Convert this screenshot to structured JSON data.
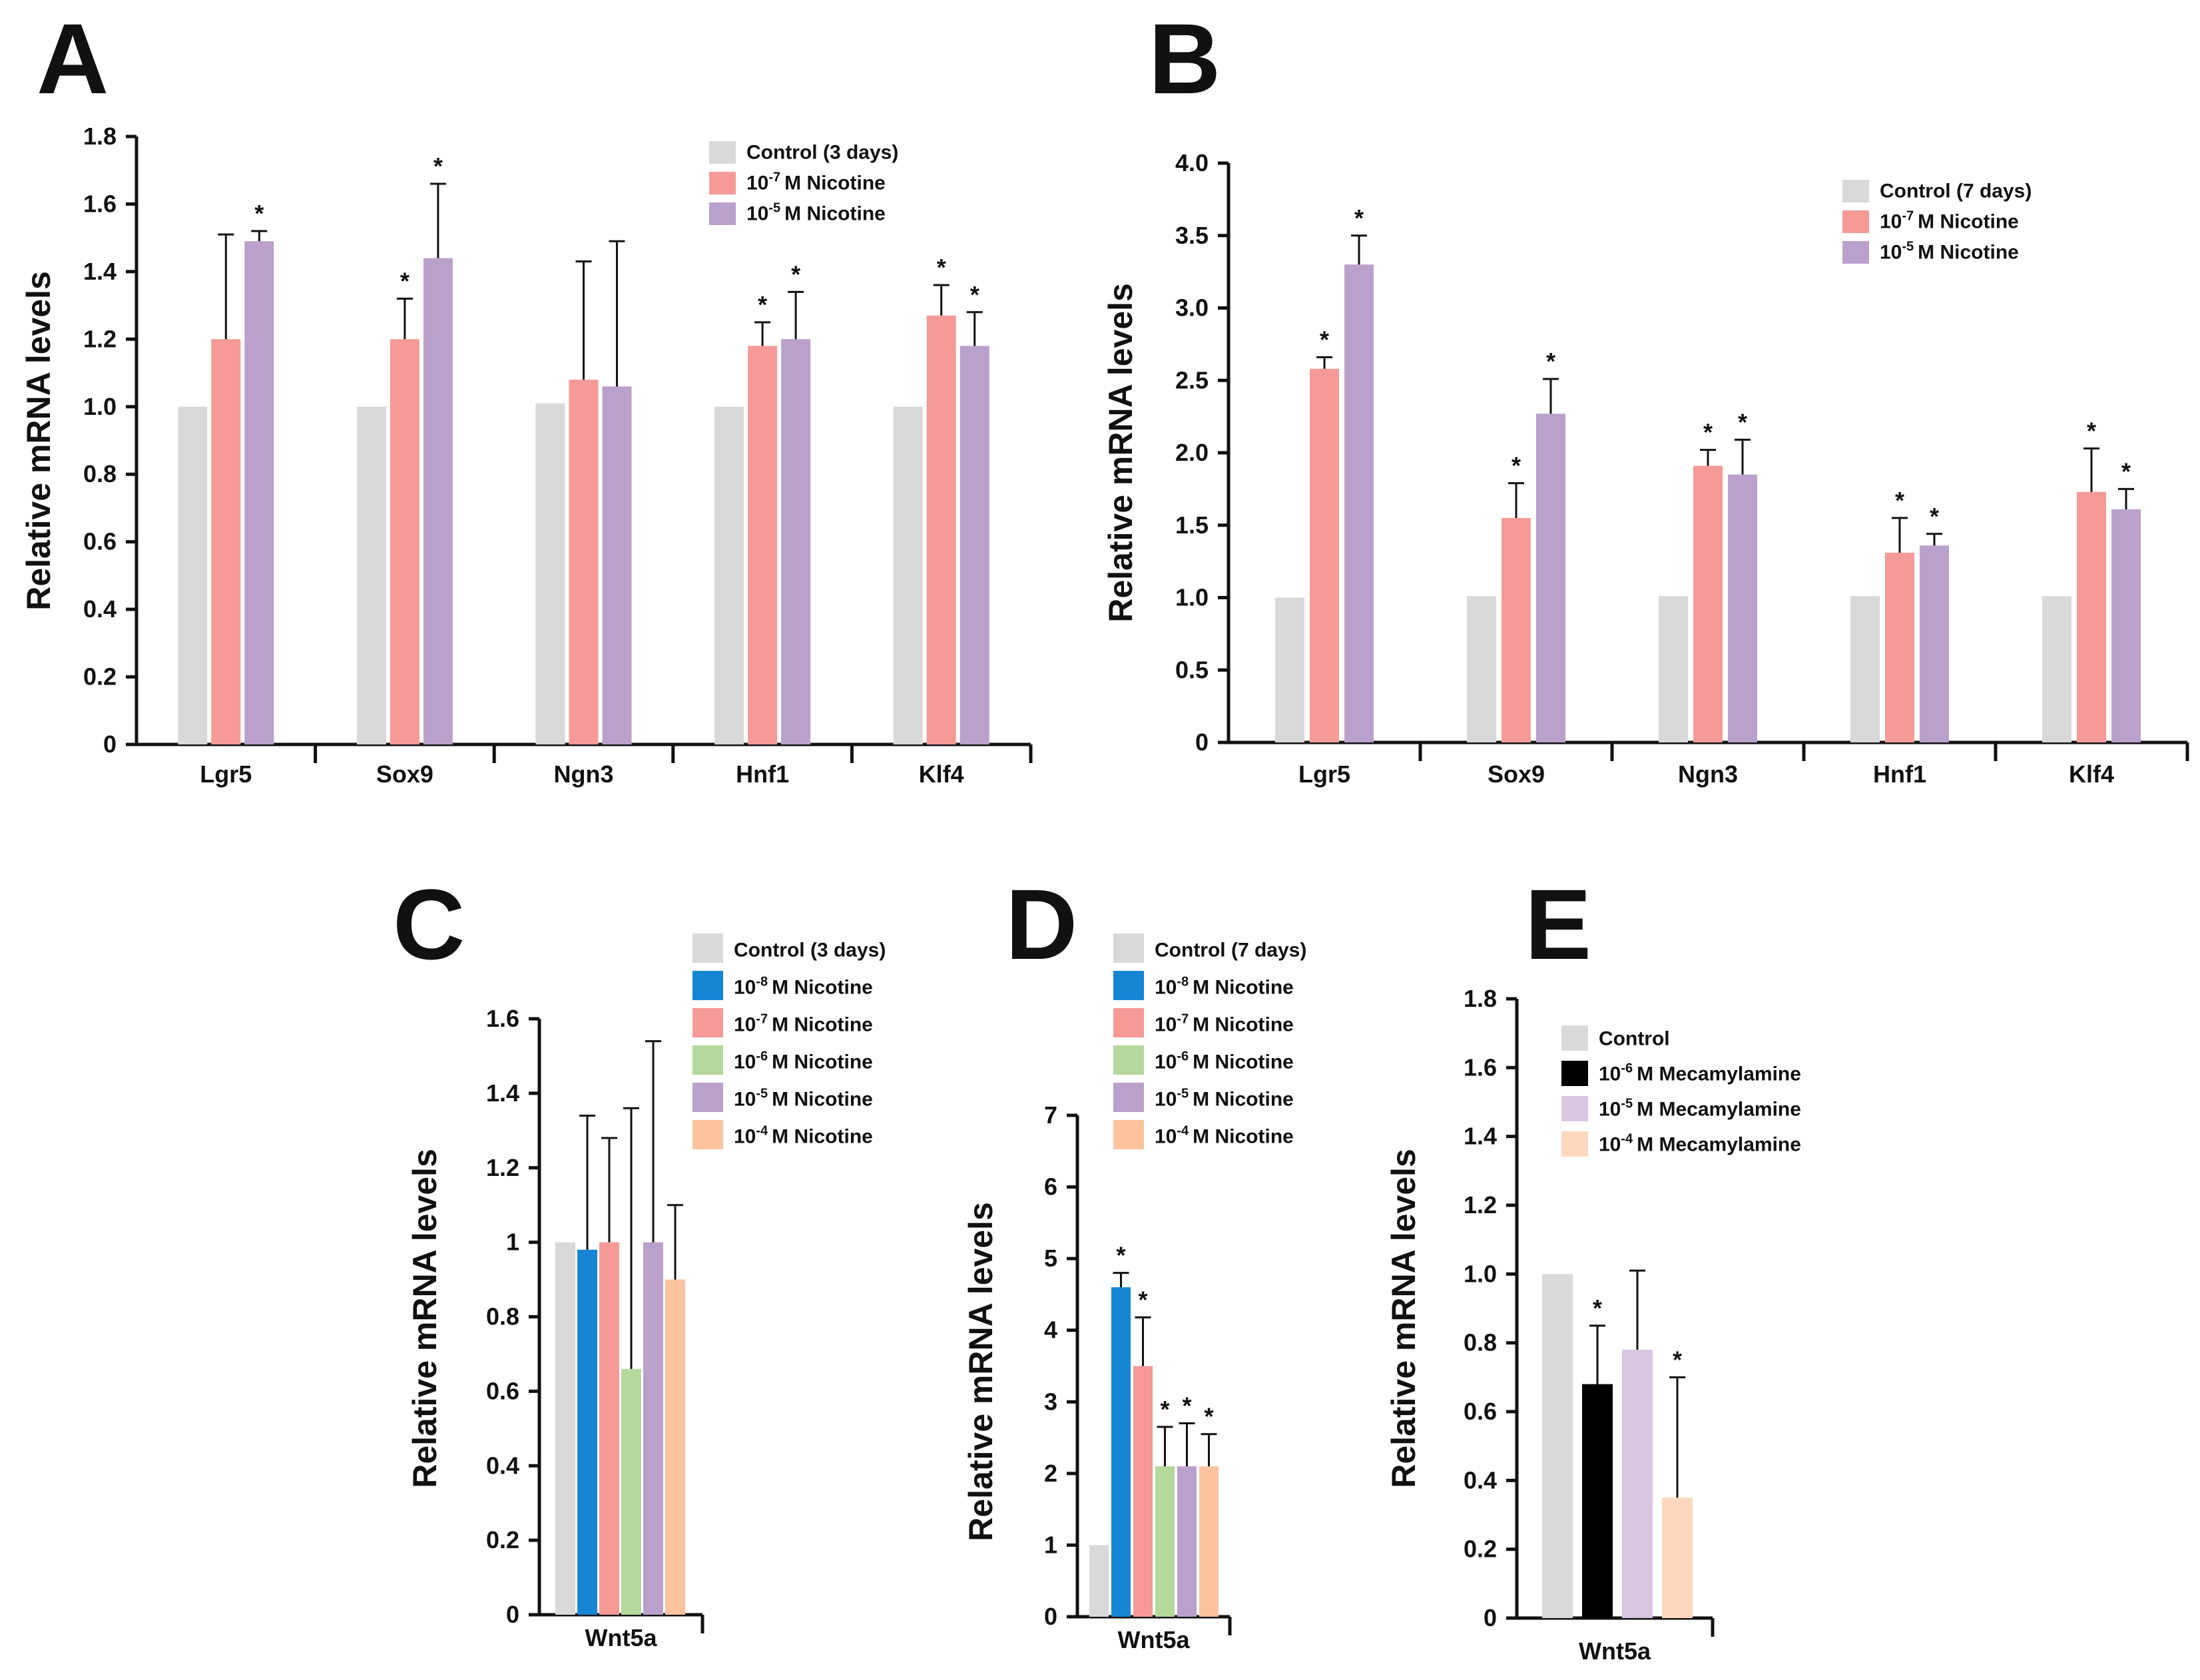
{
  "colors": {
    "control": "#d9d9d9",
    "nic_1e-8": "#1686d4",
    "nic_1e-7": "#f59a96",
    "nic_1e-6": "#b5d89c",
    "nic_1e-5": "#b9a1cc",
    "nic_1e-4": "#fcc49e",
    "mec_1e-6": "#000000",
    "mec_1e-5": "#d8c6e3",
    "mec_1e-4": "#fdd8be"
  },
  "chart_data": [
    {
      "id": "A",
      "type": "bar",
      "panel_label": "A",
      "ylabel": "Relative mRNA levels",
      "ylim": [
        0,
        1.8
      ],
      "yticks": [
        "0",
        "0.2",
        "0.4",
        "0.6",
        "0.8",
        "1.0",
        "1.2",
        "1.4",
        "1.6",
        "1.8"
      ],
      "categories": [
        "Lgr5",
        "Sox9",
        "Ngn3",
        "Hnf1",
        "Klf4"
      ],
      "series": [
        {
          "name": "Control (3 days)",
          "base": "10",
          "exp": "",
          "label": "Control (3 days)",
          "color": "control",
          "values": [
            1.0,
            1.0,
            1.01,
            1.0,
            1.0
          ],
          "errors": [
            0,
            0,
            0,
            0,
            0
          ],
          "sig": [
            "",
            "",
            "",
            "",
            ""
          ]
        },
        {
          "name": "10-7 M Nicotine",
          "base": "10",
          "exp": "-7",
          "label": "M Nicotine",
          "color": "nic_1e-7",
          "values": [
            1.2,
            1.2,
            1.08,
            1.18,
            1.27
          ],
          "errors": [
            0.31,
            0.12,
            0.35,
            0.07,
            0.09
          ],
          "sig": [
            "",
            "*",
            "",
            "*",
            "*"
          ]
        },
        {
          "name": "10-5 M Nicotine",
          "base": "10",
          "exp": "-5",
          "label": "M Nicotine",
          "color": "nic_1e-5",
          "values": [
            1.49,
            1.44,
            1.06,
            1.2,
            1.18
          ],
          "errors": [
            0.03,
            0.22,
            0.43,
            0.14,
            0.1
          ],
          "sig": [
            "*",
            "*",
            "",
            "*",
            "*"
          ]
        }
      ]
    },
    {
      "id": "B",
      "type": "bar",
      "panel_label": "B",
      "ylabel": "Relative mRNA levels",
      "ylim": [
        0,
        4.0
      ],
      "yticks": [
        "0",
        "0.5",
        "1.0",
        "1.5",
        "2.0",
        "2.5",
        "3.0",
        "3.5",
        "4.0"
      ],
      "categories": [
        "Lgr5",
        "Sox9",
        "Ngn3",
        "Hnf1",
        "Klf4"
      ],
      "series": [
        {
          "name": "Control (7 days)",
          "base": "10",
          "exp": "",
          "label": "Control (7 days)",
          "color": "control",
          "values": [
            1.0,
            1.01,
            1.01,
            1.01,
            1.01
          ],
          "errors": [
            0,
            0,
            0,
            0,
            0
          ],
          "sig": [
            "",
            "",
            "",
            "",
            ""
          ]
        },
        {
          "name": "10-7 M Nicotine",
          "base": "10",
          "exp": "-7",
          "label": "M Nicotine",
          "color": "nic_1e-7",
          "values": [
            2.58,
            1.55,
            1.91,
            1.31,
            1.73
          ],
          "errors": [
            0.08,
            0.24,
            0.11,
            0.24,
            0.3
          ],
          "sig": [
            "*",
            "*",
            "*",
            "*",
            "*"
          ]
        },
        {
          "name": "10-5 M Nicotine",
          "base": "10",
          "exp": "-5",
          "label": "M Nicotine",
          "color": "nic_1e-5",
          "values": [
            3.3,
            2.27,
            1.85,
            1.36,
            1.61
          ],
          "errors": [
            0.2,
            0.24,
            0.24,
            0.08,
            0.14
          ],
          "sig": [
            "*",
            "*",
            "*",
            "*",
            "*"
          ]
        }
      ]
    },
    {
      "id": "C",
      "type": "bar",
      "panel_label": "C",
      "ylabel": "Relative mRNA levels",
      "ylim": [
        0,
        1.6
      ],
      "yticks": [
        "0",
        "0.2",
        "0.4",
        "0.6",
        "0.8",
        "1",
        "1.2",
        "1.4",
        "1.6"
      ],
      "categories": [
        "Wnt5a"
      ],
      "series": [
        {
          "name": "Control (3 days)",
          "base": "",
          "exp": "",
          "label": "Control (3 days)",
          "color": "control",
          "values": [
            1.0
          ],
          "errors": [
            0
          ],
          "sig": [
            ""
          ]
        },
        {
          "name": "10-8 M Nicotine",
          "base": "10",
          "exp": "-8",
          "label": "M Nicotine",
          "color": "nic_1e-8",
          "values": [
            0.98
          ],
          "errors": [
            0.36
          ],
          "sig": [
            ""
          ]
        },
        {
          "name": "10-7 M Nicotine",
          "base": "10",
          "exp": "-7",
          "label": "M Nicotine",
          "color": "nic_1e-7",
          "values": [
            1.0
          ],
          "errors": [
            0.28
          ],
          "sig": [
            ""
          ]
        },
        {
          "name": "10-6 M Nicotine",
          "base": "10",
          "exp": "-6",
          "label": "M Nicotine",
          "color": "nic_1e-6",
          "values": [
            0.66
          ],
          "errors": [
            0.7
          ],
          "sig": [
            ""
          ]
        },
        {
          "name": "10-5 M Nicotine",
          "base": "10",
          "exp": "-5",
          "label": "M Nicotine",
          "color": "nic_1e-5",
          "values": [
            1.0
          ],
          "errors": [
            0.54
          ],
          "sig": [
            ""
          ]
        },
        {
          "name": "10-4 M Nicotine",
          "base": "10",
          "exp": "-4",
          "label": "M Nicotine",
          "color": "nic_1e-4",
          "values": [
            0.9
          ],
          "errors": [
            0.2
          ],
          "sig": [
            ""
          ]
        }
      ]
    },
    {
      "id": "D",
      "type": "bar",
      "panel_label": "D",
      "ylabel": "Relative mRNA levels",
      "ylim": [
        0,
        7
      ],
      "yticks": [
        "0",
        "1",
        "2",
        "3",
        "4",
        "5",
        "6",
        "7"
      ],
      "categories": [
        "Wnt5a"
      ],
      "series": [
        {
          "name": "Control (7 days)",
          "base": "",
          "exp": "",
          "label": "Control (7 days)",
          "color": "control",
          "values": [
            1.0
          ],
          "errors": [
            0
          ],
          "sig": [
            ""
          ]
        },
        {
          "name": "10-8 M Nicotine",
          "base": "10",
          "exp": "-8",
          "label": "M Nicotine",
          "color": "nic_1e-8",
          "values": [
            4.6
          ],
          "errors": [
            0.2
          ],
          "sig": [
            "*"
          ]
        },
        {
          "name": "10-7 M Nicotine",
          "base": "10",
          "exp": "-7",
          "label": "M Nicotine",
          "color": "nic_1e-7",
          "values": [
            3.5
          ],
          "errors": [
            0.68
          ],
          "sig": [
            "*"
          ]
        },
        {
          "name": "10-6 M Nicotine",
          "base": "10",
          "exp": "-6",
          "label": "M Nicotine",
          "color": "nic_1e-6",
          "values": [
            2.1
          ],
          "errors": [
            0.55
          ],
          "sig": [
            "*"
          ]
        },
        {
          "name": "10-5 M Nicotine",
          "base": "10",
          "exp": "-5",
          "label": "M Nicotine",
          "color": "nic_1e-5",
          "values": [
            2.1
          ],
          "errors": [
            0.6
          ],
          "sig": [
            "*"
          ]
        },
        {
          "name": "10-4 M Nicotine",
          "base": "10",
          "exp": "-4",
          "label": "M Nicotine",
          "color": "nic_1e-4",
          "values": [
            2.1
          ],
          "errors": [
            0.45
          ],
          "sig": [
            "*"
          ]
        }
      ]
    },
    {
      "id": "E",
      "type": "bar",
      "panel_label": "E",
      "ylabel": "Relative mRNA levels",
      "ylim": [
        0,
        1.8
      ],
      "yticks": [
        "0",
        "0.2",
        "0.4",
        "0.6",
        "0.8",
        "1.0",
        "1.2",
        "1.4",
        "1.6",
        "1.8"
      ],
      "categories": [
        "Wnt5a"
      ],
      "series": [
        {
          "name": "Control",
          "base": "",
          "exp": "",
          "label": "Control",
          "color": "control",
          "values": [
            1.0
          ],
          "errors": [
            0
          ],
          "sig": [
            ""
          ]
        },
        {
          "name": "10-6 M Mecamylamine",
          "base": "10",
          "exp": "-6",
          "label": "M Mecamylamine",
          "color": "mec_1e-6",
          "values": [
            0.68
          ],
          "errors": [
            0.17
          ],
          "sig": [
            "*"
          ]
        },
        {
          "name": "10-5 M Mecamylamine",
          "base": "10",
          "exp": "-5",
          "label": "M Mecamylamine",
          "color": "mec_1e-5",
          "values": [
            0.78
          ],
          "errors": [
            0.23
          ],
          "sig": [
            ""
          ]
        },
        {
          "name": "10-4 M Mecamylamine",
          "base": "10",
          "exp": "-4",
          "label": "M Mecamylamine",
          "color": "mec_1e-4",
          "values": [
            0.35
          ],
          "errors": [
            0.35
          ],
          "sig": [
            "*"
          ]
        }
      ]
    }
  ]
}
